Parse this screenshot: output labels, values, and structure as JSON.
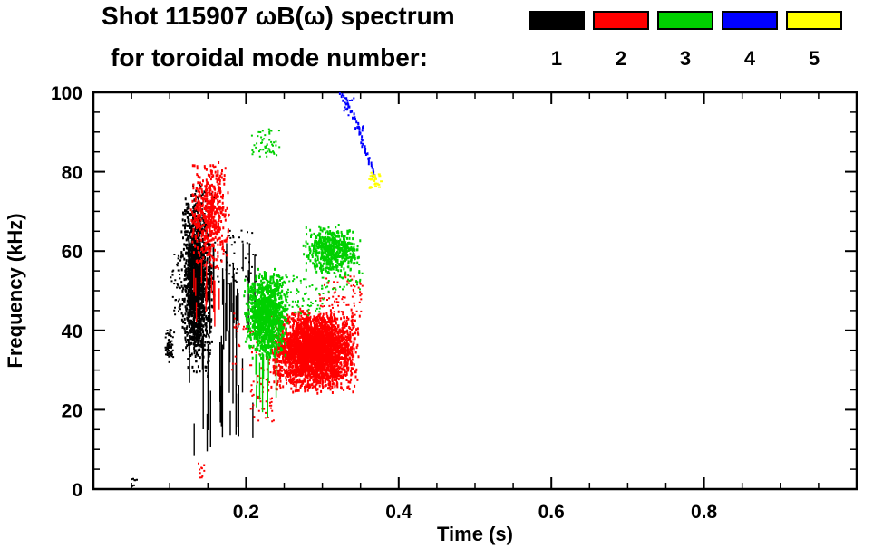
{
  "header": {
    "title": "Shot 115907 ωB(ω) spectrum",
    "subtitle": "for toroidal mode number:"
  },
  "legend": {
    "entries": [
      {
        "label": "1",
        "color": "#000000"
      },
      {
        "label": "2",
        "color": "#ff0000"
      },
      {
        "label": "3",
        "color": "#00d000"
      },
      {
        "label": "4",
        "color": "#0000ff"
      },
      {
        "label": "5",
        "color": "#ffff00"
      }
    ]
  },
  "chart_data": {
    "type": "scatter",
    "title": "Shot 115907 ωB(ω) spectrum for toroidal mode number: 1 2 3 4 5",
    "xlabel": "Time (s)",
    "ylabel": "Frequency (kHz)",
    "xlim": [
      0.0,
      1.0
    ],
    "ylim": [
      0,
      100
    ],
    "xticks": {
      "major": [
        0.2,
        0.4,
        0.6,
        0.8
      ],
      "minor_step": 0.05
    },
    "yticks": {
      "major": [
        0,
        20,
        40,
        60,
        80,
        100
      ],
      "minor_step": 5
    },
    "grid": false,
    "legend_position": "top-right",
    "series": [
      {
        "name": "n1",
        "mode_number": 1,
        "color": "#000000",
        "clusters": [
          {
            "type": "blob",
            "t": [
              0.112,
              0.158
            ],
            "f": [
              28,
              78
            ],
            "n": 900,
            "w": 2,
            "h": 3
          },
          {
            "type": "blob",
            "t": [
              0.118,
              0.145
            ],
            "f": [
              34,
              73
            ],
            "n": 650,
            "w": 2,
            "h": 3
          },
          {
            "type": "vlines",
            "t": [
              0.122,
              0.212
            ],
            "f": [
              8,
              62
            ],
            "n": 42,
            "len": [
              6,
              26
            ]
          },
          {
            "type": "blob",
            "t": [
              0.092,
              0.105
            ],
            "f": [
              32,
              41
            ],
            "n": 60,
            "w": 2,
            "h": 2
          },
          {
            "type": "points",
            "t": [
              0.047,
              0.056
            ],
            "f": [
              1,
              3
            ],
            "n": 8,
            "w": 2,
            "h": 2
          },
          {
            "type": "points",
            "t": [
              0.15,
              0.215
            ],
            "f": [
              52,
              66
            ],
            "n": 50,
            "w": 2,
            "h": 2
          },
          {
            "type": "points",
            "t": [
              0.1,
              0.113
            ],
            "f": [
              44,
              60
            ],
            "n": 40,
            "w": 2,
            "h": 2
          }
        ]
      },
      {
        "name": "n2",
        "mode_number": 2,
        "color": "#ff0000",
        "clusters": [
          {
            "type": "blob",
            "t": [
              0.124,
              0.178
            ],
            "f": [
              55,
              84
            ],
            "n": 550,
            "w": 2,
            "h": 3
          },
          {
            "type": "vlines",
            "t": [
              0.128,
              0.168
            ],
            "f": [
              40,
              58
            ],
            "n": 10,
            "len": [
              4,
              12
            ]
          },
          {
            "type": "blob",
            "t": [
              0.225,
              0.348
            ],
            "f": [
              24,
              46
            ],
            "n": 2200,
            "w": 2,
            "h": 3
          },
          {
            "type": "blob",
            "t": [
              0.235,
              0.345
            ],
            "f": [
              28,
              44
            ],
            "n": 1000,
            "w": 2,
            "h": 3
          },
          {
            "type": "points",
            "t": [
              0.295,
              0.352
            ],
            "f": [
              44,
              54
            ],
            "n": 70,
            "w": 2,
            "h": 2
          },
          {
            "type": "points",
            "t": [
              0.205,
              0.235
            ],
            "f": [
              17,
              30
            ],
            "n": 45,
            "w": 2,
            "h": 2
          },
          {
            "type": "points",
            "t": [
              0.136,
              0.15
            ],
            "f": [
              3,
              7
            ],
            "n": 10,
            "w": 2,
            "h": 2
          },
          {
            "type": "points",
            "t": [
              0.18,
              0.225
            ],
            "f": [
              30,
              45
            ],
            "n": 40,
            "w": 2,
            "h": 2
          }
        ]
      },
      {
        "name": "n3",
        "mode_number": 3,
        "color": "#00d000",
        "clusters": [
          {
            "type": "blob",
            "t": [
              0.196,
              0.254
            ],
            "f": [
              33,
              56
            ],
            "n": 1200,
            "w": 2,
            "h": 3
          },
          {
            "type": "blob",
            "t": [
              0.272,
              0.35
            ],
            "f": [
              54,
              67
            ],
            "n": 550,
            "w": 2,
            "h": 3
          },
          {
            "type": "points",
            "t": [
              0.25,
              0.3
            ],
            "f": [
              44,
              54
            ],
            "n": 70,
            "w": 2,
            "h": 2
          },
          {
            "type": "points",
            "t": [
              0.206,
              0.244
            ],
            "f": [
              84,
              91
            ],
            "n": 55,
            "w": 2,
            "h": 2
          },
          {
            "type": "vlines",
            "t": [
              0.208,
              0.24
            ],
            "f": [
              18,
              34
            ],
            "n": 10,
            "len": [
              5,
              14
            ]
          },
          {
            "type": "points",
            "t": [
              0.3,
              0.352
            ],
            "f": [
              50,
              57
            ],
            "n": 40,
            "w": 2,
            "h": 2
          }
        ]
      },
      {
        "name": "n4",
        "mode_number": 4,
        "color": "#0000ff",
        "clusters": [
          {
            "type": "arc",
            "t": [
              0.323,
              0.352
            ],
            "f": [
              100,
              91
            ],
            "n": 26,
            "jitter": 1.5
          },
          {
            "type": "arc",
            "t": [
              0.344,
              0.368
            ],
            "f": [
              92,
              79
            ],
            "n": 34,
            "jitter": 1.5
          },
          {
            "type": "points",
            "t": [
              0.327,
              0.34
            ],
            "f": [
              93,
              100
            ],
            "n": 12,
            "w": 2,
            "h": 2
          }
        ]
      },
      {
        "name": "n5",
        "mode_number": 5,
        "color": "#ffff00",
        "clusters": [
          {
            "type": "points",
            "t": [
              0.36,
              0.376
            ],
            "f": [
              76,
              80
            ],
            "n": 26,
            "w": 3,
            "h": 2
          }
        ]
      }
    ]
  }
}
